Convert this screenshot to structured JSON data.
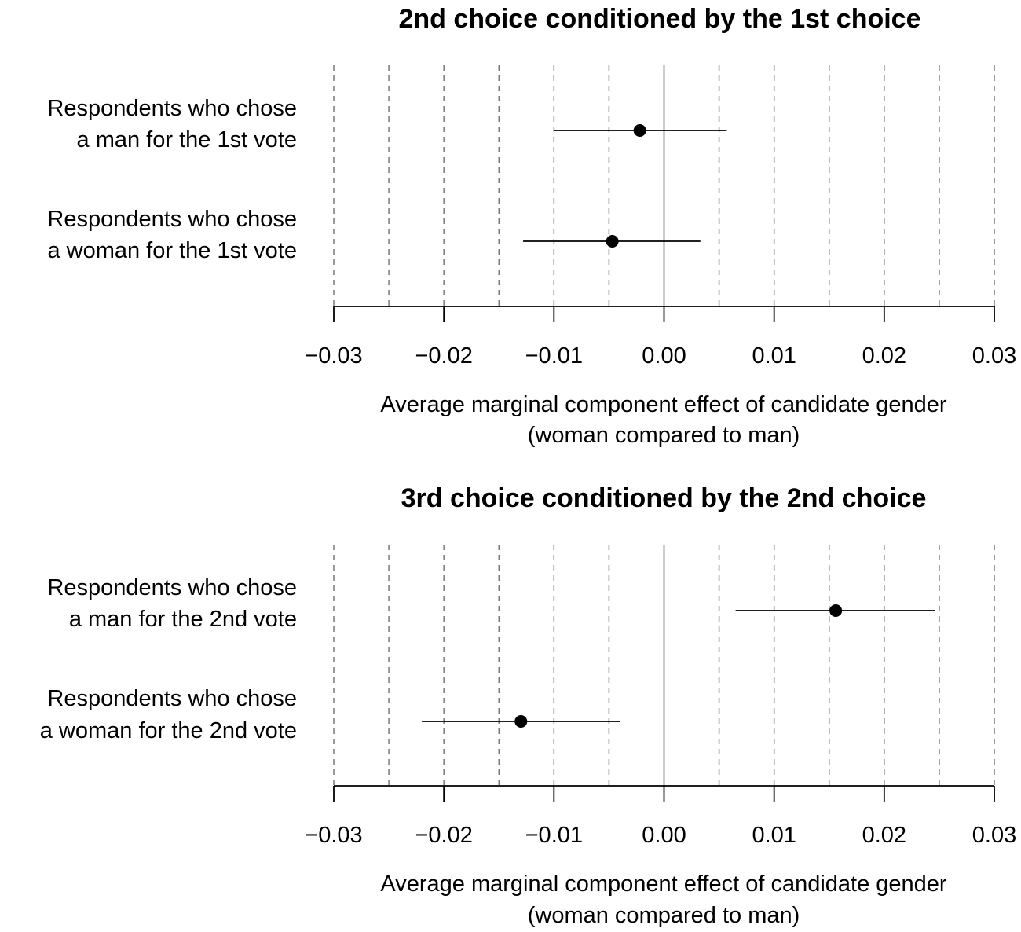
{
  "chart_data": [
    {
      "type": "scatter",
      "title": "2nd choice conditioned by the 1st choice",
      "xlabel": [
        "Average marginal component effect of candidate gender",
        "(woman compared to man)"
      ],
      "xlim": [
        -0.03,
        0.03
      ],
      "xticks": [
        -0.03,
        -0.02,
        -0.01,
        0.0,
        0.01,
        0.02,
        0.03
      ],
      "xtick_labels": [
        "−0.03",
        "−0.02",
        "−0.01",
        "0.00",
        "0.01",
        "0.02",
        "0.03"
      ],
      "grid": "dashed vertical every 0.005",
      "categories": [
        {
          "label": [
            "Respondents who chose",
            "a man for the 1st vote"
          ],
          "estimate": -0.0022,
          "ci_low": -0.01,
          "ci_high": 0.0057
        },
        {
          "label": [
            "Respondents who chose",
            "a woman for the 1st vote"
          ],
          "estimate": -0.0047,
          "ci_low": -0.0128,
          "ci_high": 0.0033
        }
      ]
    },
    {
      "type": "scatter",
      "title": "3rd choice conditioned by the 2nd choice",
      "xlabel": [
        "Average marginal component effect of candidate gender",
        "(woman compared to man)"
      ],
      "xlim": [
        -0.03,
        0.03
      ],
      "xticks": [
        -0.03,
        -0.02,
        -0.01,
        0.0,
        0.01,
        0.02,
        0.03
      ],
      "xtick_labels": [
        "−0.03",
        "−0.02",
        "−0.01",
        "0.00",
        "0.01",
        "0.02",
        "0.03"
      ],
      "grid": "dashed vertical every 0.005",
      "categories": [
        {
          "label": [
            "Respondents who chose",
            "a man for the 2nd vote"
          ],
          "estimate": 0.0156,
          "ci_low": 0.0065,
          "ci_high": 0.0246
        },
        {
          "label": [
            "Respondents who chose",
            "a woman for the 2nd vote"
          ],
          "estimate": -0.013,
          "ci_low": -0.022,
          "ci_high": -0.004
        }
      ]
    }
  ]
}
